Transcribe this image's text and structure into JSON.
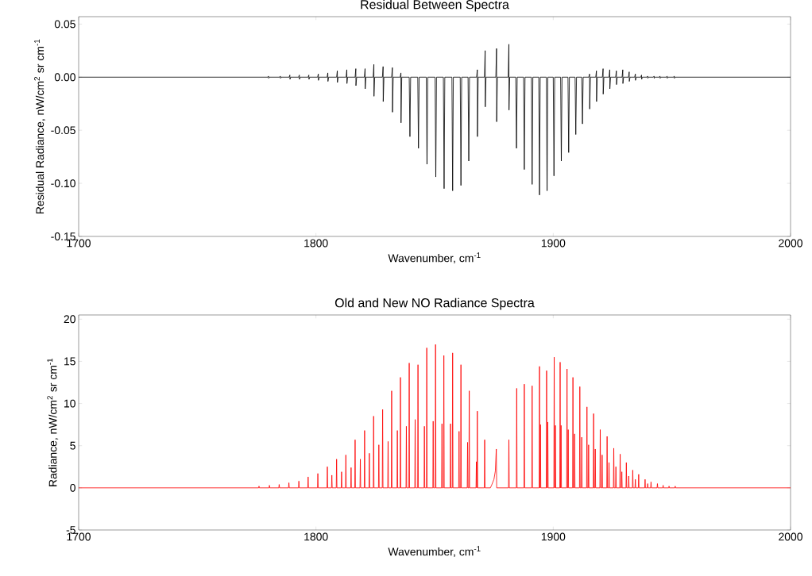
{
  "chart_data": [
    {
      "type": "line",
      "title": "Residual Between Spectra",
      "xlabel": "Wavenumber, cm$^{-1}$",
      "ylabel": "Residual Radiance, nW/cm$^{2}$ sr cm$^{-1}$",
      "xlim": [
        1700,
        2000
      ],
      "xticks": [
        1700,
        1800,
        1900,
        2000
      ],
      "ylim": [
        -0.15,
        0.057
      ],
      "yticks": [
        -0.15,
        {
          "value": -0.1,
          "label": "-0.10"
        },
        -0.05,
        {
          "value": 0,
          "label": "0.00"
        },
        0.05
      ],
      "series": [
        {
          "color": "#000000",
          "x": [
            1700,
            1779.7,
            1780,
            1780.05,
            1780.35,
            1784.7,
            1785,
            1785.05,
            1785.35,
            1788.7,
            1789,
            1789.05,
            1789.35,
            1792.7,
            1793,
            1793.05,
            1793.35,
            1796.7,
            1797,
            1797.05,
            1797.35,
            1800.7,
            1801,
            1801.05,
            1801.35,
            1804.7,
            1805,
            1805.05,
            1805.35,
            1808.7,
            1809,
            1809.05,
            1809.35,
            1812.7,
            1813,
            1813.05,
            1813.35,
            1816.5,
            1816.8,
            1816.85,
            1817.15,
            1820.4,
            1820.7,
            1820.75,
            1821.05,
            1824.1,
            1824.4,
            1824.45,
            1824.75,
            1828,
            1828.3,
            1828.35,
            1828.65,
            1831.9,
            1832.2,
            1832.25,
            1832.55,
            1835.5,
            1835.8,
            1835.85,
            1836.15,
            1839.3,
            1839.6,
            1839.9,
            1842.9,
            1843.2,
            1843.5,
            1846.5,
            1846.8,
            1847.1,
            1850.2,
            1850.5,
            1850.8,
            1853.7,
            1854,
            1854.3,
            1857.3,
            1857.6,
            1857.9,
            1860.8,
            1861.1,
            1861.4,
            1864.1,
            1864.4,
            1864.7,
            1867.7,
            1868,
            1868.05,
            1868.35,
            1871,
            1871.3,
            1871.35,
            1871.65,
            1875.8,
            1876.1,
            1876.15,
            1876.45,
            1881,
            1881.3,
            1881.35,
            1881.65,
            1884.2,
            1884.5,
            1884.8,
            1887.5,
            1887.8,
            1888.1,
            1890.8,
            1891.1,
            1891.4,
            1893.9,
            1894.2,
            1894.5,
            1897.1,
            1897.4,
            1897.7,
            1900,
            1900.3,
            1900.6,
            1903.1,
            1903.4,
            1903.7,
            1906.2,
            1906.5,
            1906.8,
            1909.2,
            1909.5,
            1909.8,
            1912,
            1912.3,
            1912.6,
            1915,
            1915.3,
            1915.35,
            1915.65,
            1917.9,
            1918.2,
            1918.25,
            1918.55,
            1920.7,
            1921,
            1921.05,
            1921.35,
            1923.5,
            1923.8,
            1923.85,
            1924.15,
            1926.3,
            1926.6,
            1926.65,
            1926.95,
            1929,
            1929.3,
            1929.35,
            1929.65,
            1931.7,
            1932,
            1932.05,
            1932.35,
            1934.3,
            1934.6,
            1934.65,
            1934.95,
            1936.9,
            1937.2,
            1937.25,
            1937.55,
            1939.5,
            1939.8,
            1939.85,
            1940.15,
            1942.2,
            1942.5,
            1942.55,
            1942.85,
            1944.7,
            1945,
            1945.05,
            1945.35,
            1947.7,
            1948,
            1948.05,
            1948.35,
            1950.7,
            1951,
            1951.05,
            1951.35,
            2000
          ],
          "values": [
            0,
            0,
            0.001,
            -0.001,
            0,
            0,
            0.001,
            -0.001,
            0,
            0,
            0.002,
            -0.002,
            0,
            0,
            0.002,
            -0.002,
            0,
            0,
            0.002,
            -0.002,
            0,
            0,
            0.003,
            -0.003,
            0,
            0,
            0.004,
            -0.004,
            0,
            0,
            0.006,
            -0.005,
            0,
            0,
            0.007,
            -0.006,
            0,
            0,
            0.008,
            -0.008,
            0,
            0,
            0.008,
            -0.011,
            0,
            0,
            0.012,
            -0.018,
            0,
            0,
            0.01,
            -0.023,
            0,
            0,
            0.009,
            -0.033,
            0,
            0,
            0.004,
            -0.043,
            0,
            0,
            -0.056,
            0,
            0,
            -0.067,
            0,
            0,
            -0.082,
            0,
            0,
            -0.094,
            0,
            0,
            -0.105,
            0,
            0,
            -0.107,
            0,
            0,
            -0.102,
            0,
            0,
            -0.079,
            0,
            0,
            0.007,
            -0.056,
            0,
            0,
            0.025,
            -0.028,
            0,
            0,
            0.027,
            -0.042,
            0,
            0,
            0.031,
            -0.031,
            0,
            0,
            -0.067,
            0,
            0,
            -0.087,
            0,
            0,
            -0.101,
            0,
            0,
            -0.111,
            0,
            0,
            -0.107,
            0,
            0,
            -0.093,
            0,
            0,
            -0.079,
            0,
            0,
            -0.071,
            0,
            0,
            -0.054,
            0,
            0,
            -0.044,
            0,
            0,
            0.003,
            -0.03,
            0,
            0,
            0.006,
            -0.023,
            0,
            0,
            0.008,
            -0.016,
            0,
            0,
            0.007,
            -0.011,
            0,
            0,
            0.006,
            -0.007,
            0,
            0,
            0.007,
            -0.006,
            0,
            0,
            0.005,
            -0.004,
            0,
            0,
            0.003,
            -0.003,
            0,
            0,
            0.002,
            -0.002,
            0,
            0,
            0.001,
            -0.001,
            0,
            0,
            0.001,
            -0.001,
            0,
            0,
            0.001,
            -0.001,
            0,
            0,
            0.001,
            -0.001,
            0,
            0,
            0.001,
            -0.001,
            0,
            0
          ]
        }
      ]
    },
    {
      "type": "line",
      "title": "Old and New NO Radiance Spectra",
      "xlabel": "Wavenumber, cm$^{-1}$",
      "ylabel": "Radiance, nW/cm$^{2}$ sr cm$^{-1}$",
      "xlim": [
        1700,
        2000
      ],
      "xticks": [
        1700,
        1800,
        1900,
        2000
      ],
      "ylim": [
        -5,
        20.5
      ],
      "yticks": [
        -5,
        0,
        5,
        10,
        15,
        20
      ],
      "series": [
        {
          "color": "#ff0000",
          "x": [
            1700,
            1775.85,
            1776,
            1776.15,
            1780.25,
            1780.4,
            1780.55,
            1784.35,
            1784.5,
            1784.65,
            1788.45,
            1788.6,
            1788.75,
            1792.65,
            1792.8,
            1792.95,
            1796.55,
            1796.7,
            1796.85,
            1800.65,
            1800.8,
            1800.95,
            1804.65,
            1804.8,
            1804.95,
            1806.55,
            1806.7,
            1806.85,
            1808.55,
            1808.7,
            1808.85,
            1810.65,
            1810.8,
            1810.95,
            1812.45,
            1812.6,
            1812.75,
            1814.65,
            1814.8,
            1814.95,
            1816.35,
            1816.5,
            1816.65,
            1818.55,
            1818.7,
            1818.85,
            1820.35,
            1820.5,
            1820.65,
            1822.35,
            1822.5,
            1822.65,
            1824.15,
            1824.3,
            1824.45,
            1826.35,
            1826.5,
            1826.65,
            1827.95,
            1828.1,
            1828.25,
            1830.25,
            1830.4,
            1830.55,
            1831.75,
            1831.9,
            1832.05,
            1834.15,
            1834.3,
            1834.45,
            1835.45,
            1835.6,
            1835.75,
            1837.95,
            1838.1,
            1838.25,
            1839.15,
            1839.3,
            1839.45,
            1841.65,
            1841.8,
            1841.95,
            1842.85,
            1843,
            1843.15,
            1845.55,
            1845.7,
            1845.85,
            1846.55,
            1846.7,
            1846.85,
            1849.25,
            1849.4,
            1849.55,
            1850.25,
            1850.4,
            1850.55,
            1852.95,
            1853.1,
            1853.25,
            1853.75,
            1853.9,
            1854.05,
            1856.55,
            1856.7,
            1856.85,
            1857.45,
            1857.6,
            1857.75,
            1860.15,
            1860.3,
            1860.45,
            1860.95,
            1861.1,
            1861.25,
            1863.75,
            1863.9,
            1864.05,
            1864.45,
            1864.6,
            1864.75,
            1867.45,
            1867.6,
            1867.75,
            1867.85,
            1868,
            1868.15,
            1870.95,
            1871.1,
            1871.25,
            1873.5,
            1874,
            1875,
            1875.6,
            1876,
            1876.15,
            1881.15,
            1881.3,
            1881.45,
            1884.45,
            1884.6,
            1884.75,
            1887.65,
            1887.8,
            1887.95,
            1890.95,
            1891.1,
            1891.25,
            1894.05,
            1894.2,
            1894.35,
            1894.45,
            1894.6,
            1894.75,
            1897.05,
            1897.2,
            1897.35,
            1897.55,
            1897.7,
            1897.85,
            1900.25,
            1900.4,
            1900.55,
            1900.75,
            1900.9,
            1901.05,
            1902.75,
            1902.9,
            1903.05,
            1903.15,
            1903.3,
            1903.45,
            1905.65,
            1905.8,
            1905.95,
            1906.15,
            1906.3,
            1906.45,
            1908.15,
            1908.3,
            1908.45,
            1908.85,
            1909,
            1909.15,
            1911.05,
            1911.2,
            1911.35,
            1911.85,
            1912,
            1912.15,
            1914.05,
            1914.2,
            1914.35,
            1914.75,
            1914.9,
            1915.05,
            1916.85,
            1917,
            1917.15,
            1917.55,
            1917.7,
            1917.85,
            1919.65,
            1919.8,
            1919.95,
            1920.45,
            1920.6,
            1920.75,
            1922.55,
            1922.7,
            1922.85,
            1923.35,
            1923.5,
            1923.65,
            1925.35,
            1925.5,
            1925.65,
            1926.25,
            1926.4,
            1926.55,
            1928.05,
            1928.2,
            1928.35,
            1928.75,
            1928.9,
            1929.05,
            1930.65,
            1930.8,
            1930.95,
            1931.65,
            1931.8,
            1931.95,
            1933.35,
            1933.5,
            1933.65,
            1934.45,
            1934.6,
            1934.75,
            1935.85,
            1936,
            1936.15,
            1938.55,
            1938.7,
            1938.85,
            1939.65,
            1939.8,
            1939.95,
            1941.05,
            1941.2,
            1941.35,
            1943.75,
            1943.9,
            1944.05,
            1946.15,
            1946.3,
            1946.45,
            1948.65,
            1948.8,
            1948.95,
            1951.25,
            1951.4,
            1951.55,
            2000
          ],
          "values": [
            0,
            0,
            0.2,
            0,
            0,
            0.3,
            0,
            0,
            0.4,
            0,
            0,
            0.6,
            0,
            0,
            0.8,
            0,
            0,
            1.3,
            0,
            0,
            1.7,
            0,
            0,
            2.5,
            0,
            0,
            1.5,
            0,
            0,
            3.4,
            0,
            0,
            1.9,
            0,
            0,
            3.9,
            0,
            0,
            2.4,
            0,
            0,
            5.7,
            0,
            0,
            3.4,
            0,
            0,
            6.8,
            0,
            0,
            4.1,
            0,
            0,
            8.5,
            0,
            0,
            5.1,
            0,
            0,
            9.3,
            0,
            0,
            5.5,
            0,
            0,
            11.5,
            0,
            0,
            6.8,
            0,
            0,
            13.1,
            0,
            0,
            7.3,
            0,
            0,
            14.8,
            0,
            0,
            8.1,
            0,
            0,
            14.6,
            0,
            0,
            7.3,
            0,
            0,
            16.6,
            0,
            0,
            7.9,
            0,
            0,
            17.0,
            0,
            0,
            7.6,
            0,
            0,
            15.7,
            0,
            0,
            7.6,
            0,
            0,
            16.0,
            0,
            0,
            6.7,
            0,
            0,
            14.6,
            0,
            0,
            5.4,
            0,
            0,
            11.5,
            0,
            0,
            3.1,
            0,
            0,
            9.1,
            0,
            0,
            5.7,
            0,
            0,
            0.3,
            1.0,
            2.0,
            4.6,
            0,
            0,
            5.7,
            0,
            0,
            11.8,
            0,
            0,
            12.3,
            0,
            0,
            12.1,
            0,
            0,
            14.4,
            0,
            0,
            7.5,
            0,
            0,
            13.9,
            0,
            0,
            7.8,
            0,
            0,
            15.5,
            0,
            0,
            7.4,
            0,
            0,
            14.9,
            0,
            0,
            7.4,
            0,
            0,
            14.1,
            0,
            0,
            6.9,
            0,
            0,
            13.1,
            0,
            0,
            6.4,
            0,
            0,
            12.0,
            0,
            0,
            6.0,
            0,
            0,
            9.6,
            0,
            0,
            5.1,
            0,
            0,
            8.8,
            0,
            0,
            4.6,
            0,
            0,
            6.9,
            0,
            0,
            3.9,
            0,
            0,
            6.1,
            0,
            0,
            3.0,
            0,
            0,
            4.7,
            0,
            0,
            2.5,
            0,
            0,
            4.0,
            0,
            0,
            1.9,
            0,
            0,
            3.0,
            0,
            0,
            1.4,
            0,
            0,
            2.1,
            0,
            0,
            1.0,
            0,
            0,
            1.6,
            0,
            0,
            1.0,
            0,
            0,
            0.5,
            0,
            0,
            0.7,
            0,
            0,
            0.5,
            0,
            0,
            0.3,
            0,
            0,
            0.2,
            0,
            0,
            0.2,
            0,
            0
          ]
        }
      ]
    }
  ]
}
